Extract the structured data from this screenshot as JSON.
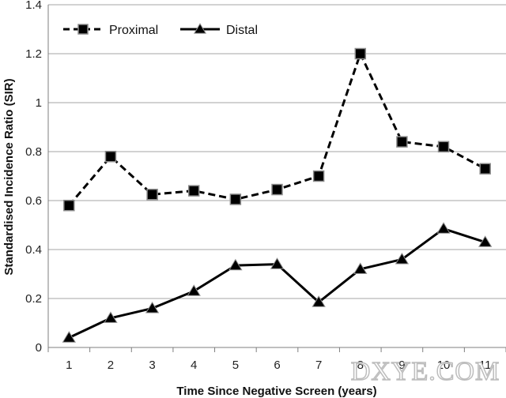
{
  "chart_data": {
    "type": "line",
    "title": "",
    "xlabel": "Time Since Negative Screen (years)",
    "ylabel": "Standardised Incidence Ratio (SIR)",
    "x": [
      1,
      2,
      3,
      4,
      5,
      6,
      7,
      8,
      9,
      10,
      11
    ],
    "ylim": [
      0,
      1.4
    ],
    "yticks": [
      0,
      0.2,
      0.4,
      0.6,
      0.8,
      1,
      1.2,
      1.4
    ],
    "ytick_labels": [
      "0",
      "0.2",
      "0.4",
      "0.6",
      "0.8",
      "1",
      "1.2",
      "1.4"
    ],
    "grid": true,
    "legend": "top-left",
    "series": [
      {
        "name": "Proximal",
        "marker": "square",
        "line": "dashed",
        "values": [
          0.58,
          0.78,
          0.625,
          0.64,
          0.605,
          0.645,
          0.7,
          1.2,
          0.84,
          0.82,
          0.73
        ]
      },
      {
        "name": "Distal",
        "marker": "triangle",
        "line": "solid",
        "values": [
          0.04,
          0.12,
          0.16,
          0.23,
          0.335,
          0.34,
          0.185,
          0.32,
          0.36,
          0.485,
          0.43
        ]
      }
    ],
    "colors": {
      "line": "#000000",
      "grid": "#a6a6a6",
      "marker_stroke": "#8c8c8c"
    },
    "watermark": "DXYE.COM"
  }
}
